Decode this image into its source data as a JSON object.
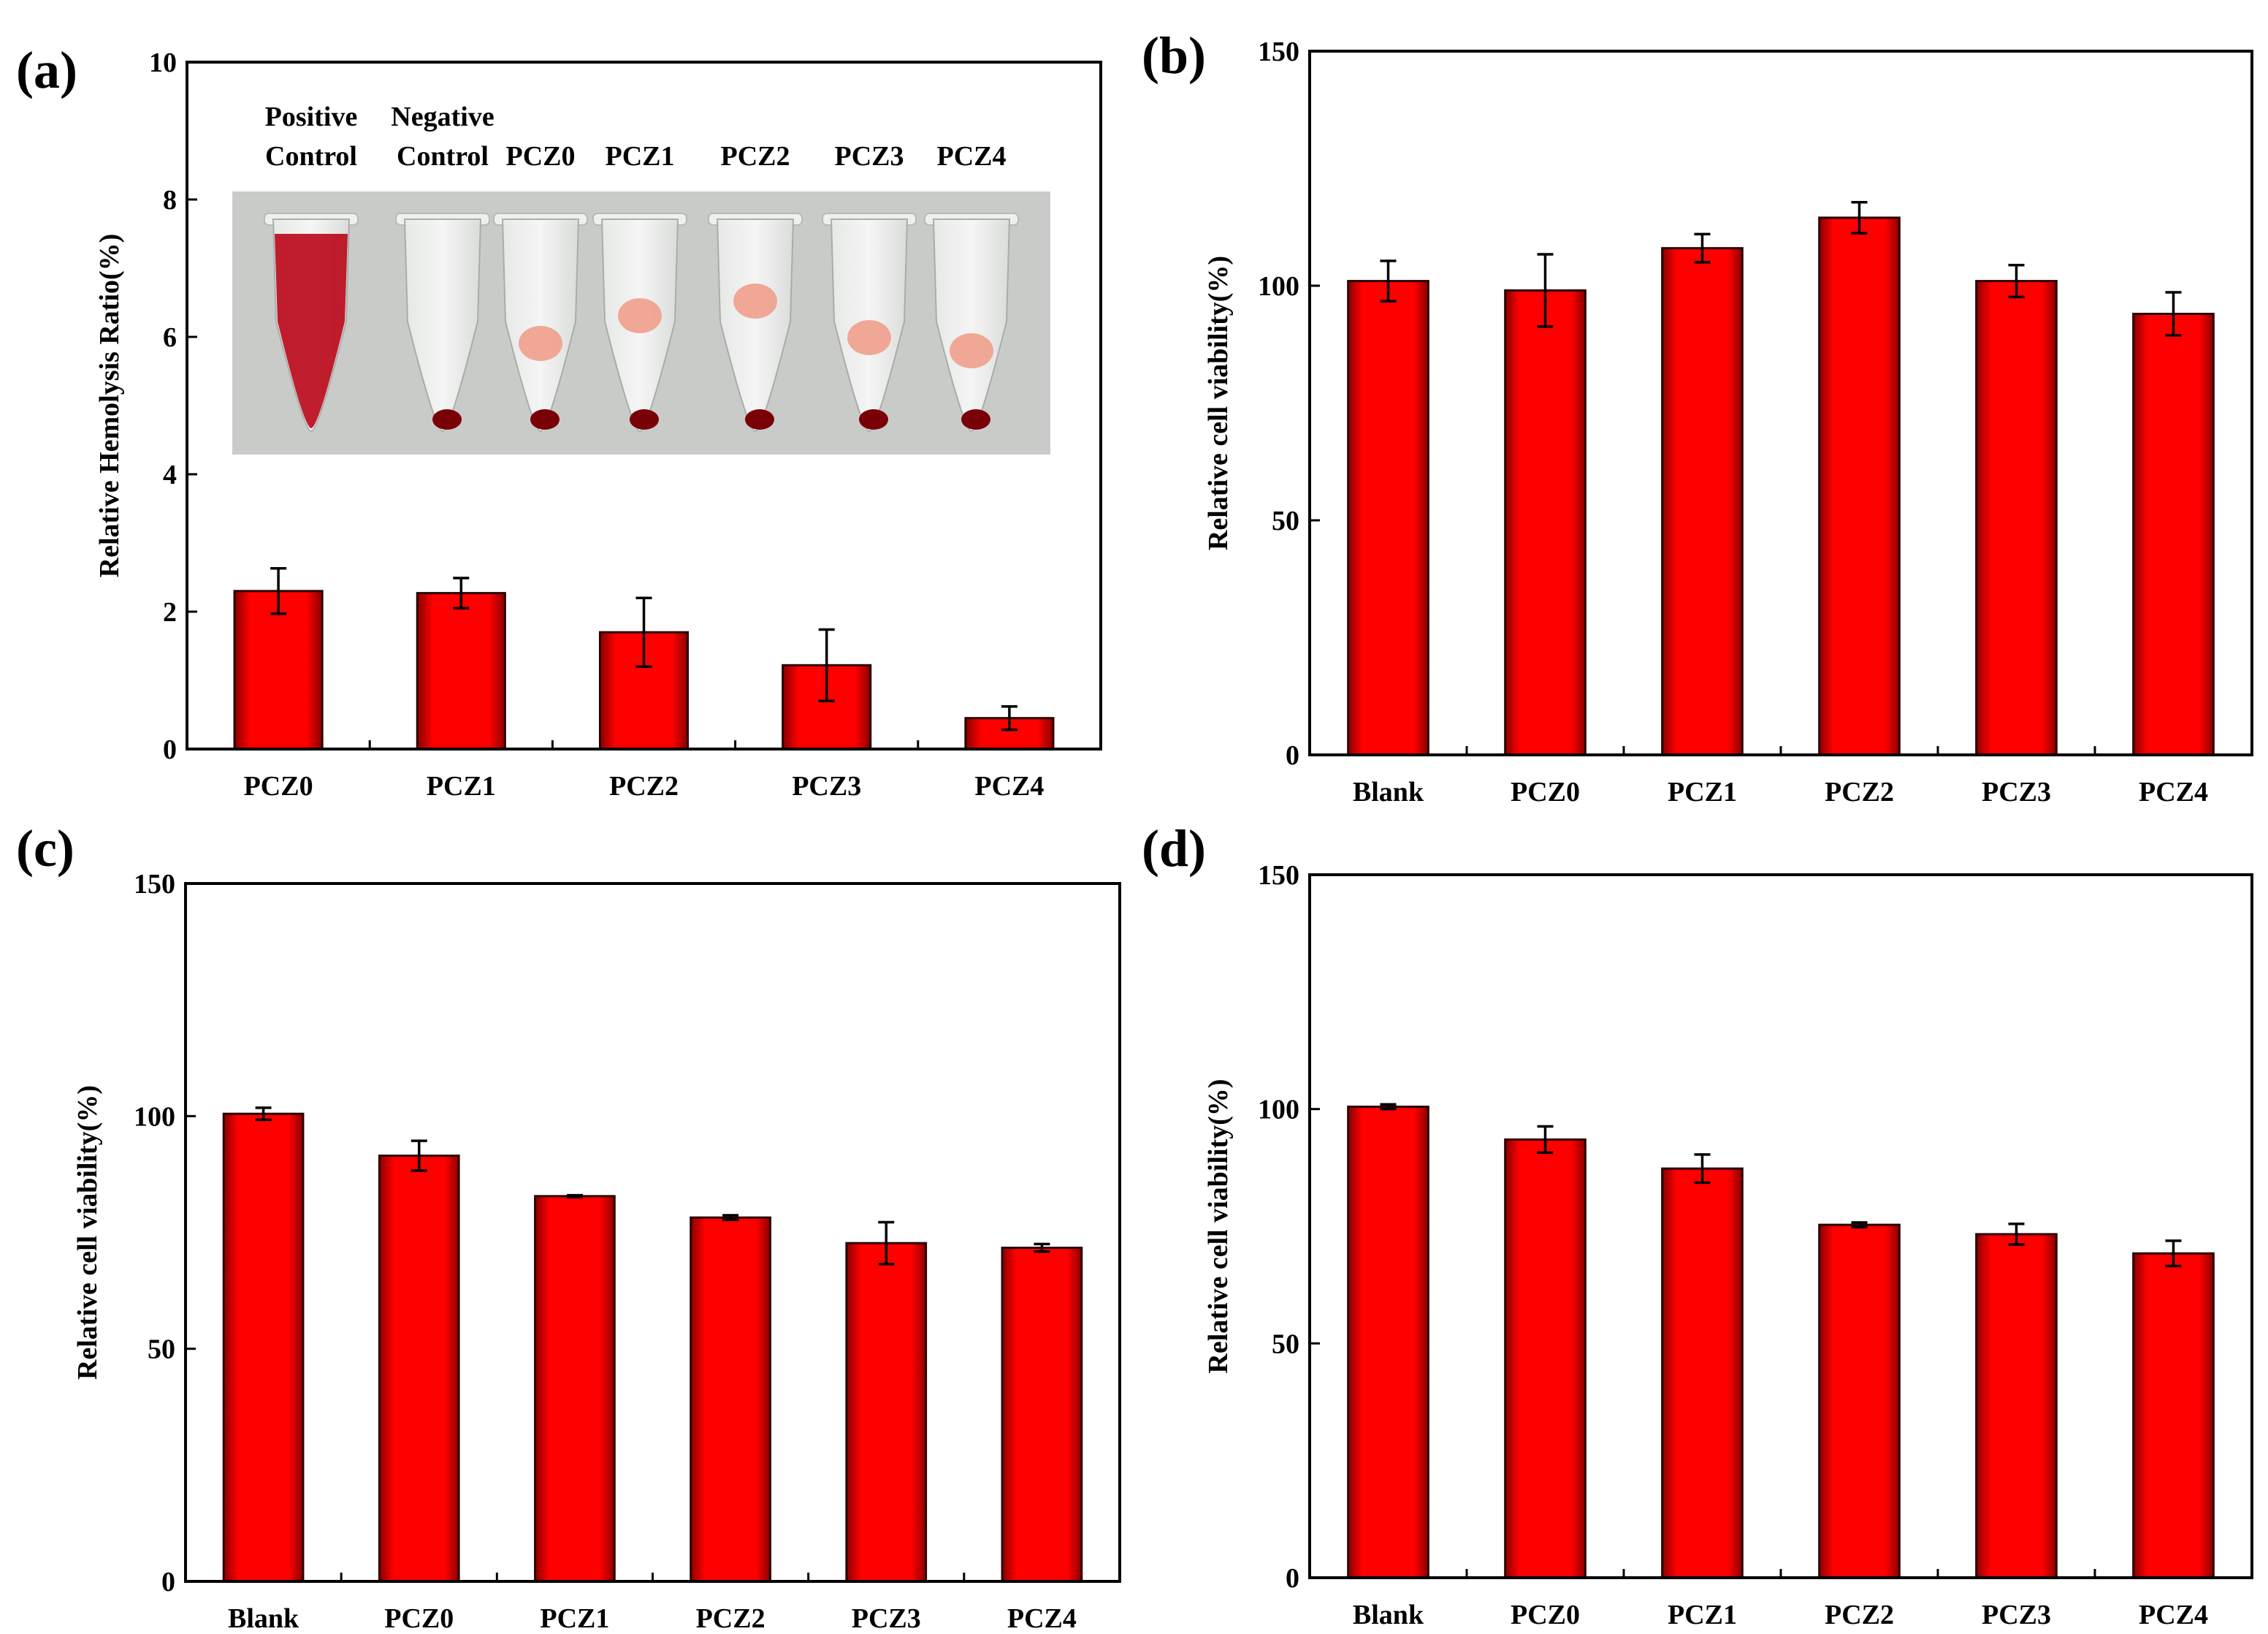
{
  "colors": {
    "bar": "#ff0000",
    "bar_edge": "#2a0000",
    "axis": "#000000",
    "photo_bg": "#c9cbc9",
    "blood": "#b80012",
    "pellet": "#7a0008",
    "clot": "#ef9f8c"
  },
  "inset": {
    "labels": [
      {
        "line1": "Positive",
        "line2": "Control"
      },
      {
        "line1": "Negative",
        "line2": "Control"
      },
      {
        "line1": "",
        "line2": "PCZ0"
      },
      {
        "line1": "",
        "line2": "PCZ1"
      },
      {
        "line1": "",
        "line2": "PCZ2"
      },
      {
        "line1": "",
        "line2": "PCZ3"
      },
      {
        "line1": "",
        "line2": "PCZ4"
      }
    ]
  },
  "chart_data": [
    {
      "panel": "(a)",
      "type": "bar",
      "title": "",
      "xlabel": "",
      "ylabel": "Relative Hemolysis Ratio(%)",
      "ylim": [
        0,
        10
      ],
      "yticks": [
        0,
        2,
        4,
        6,
        8,
        10
      ],
      "categories": [
        "PCZ0",
        "PCZ1",
        "PCZ2",
        "PCZ3",
        "PCZ4"
      ],
      "values": [
        2.3,
        2.27,
        1.7,
        1.22,
        0.45
      ],
      "errors": [
        0.33,
        0.22,
        0.5,
        0.52,
        0.17
      ],
      "grid": false
    },
    {
      "panel": "(b)",
      "type": "bar",
      "title": "",
      "xlabel": "",
      "ylabel": "Relative cell viability(%)",
      "ylim": [
        0,
        150
      ],
      "yticks": [
        0,
        50,
        100,
        150
      ],
      "categories": [
        "Blank",
        "PCZ0",
        "PCZ1",
        "PCZ2",
        "PCZ3",
        "PCZ4"
      ],
      "values": [
        101,
        99,
        108,
        114.5,
        101,
        94
      ],
      "errors": [
        4.3,
        7.7,
        3,
        3.3,
        3.4,
        4.6
      ],
      "grid": false
    },
    {
      "panel": "(c)",
      "type": "bar",
      "title": "",
      "xlabel": "",
      "ylabel": "Relative cell viability(%)",
      "ylim": [
        0,
        150
      ],
      "yticks": [
        0,
        50,
        100,
        150
      ],
      "categories": [
        "Blank",
        "PCZ0",
        "PCZ1",
        "PCZ2",
        "PCZ3",
        "PCZ4"
      ],
      "values": [
        100.5,
        91.5,
        82.8,
        78.2,
        72.7,
        71.7
      ],
      "errors": [
        1.3,
        3.2,
        0.2,
        0.5,
        4.5,
        0.8
      ],
      "grid": false
    },
    {
      "panel": "(d)",
      "type": "bar",
      "title": "",
      "xlabel": "",
      "ylabel": "Relative cell viability(%)",
      "ylim": [
        0,
        150
      ],
      "yticks": [
        0,
        50,
        100,
        150
      ],
      "categories": [
        "Blank",
        "PCZ0",
        "PCZ1",
        "PCZ2",
        "PCZ3",
        "PCZ4"
      ],
      "values": [
        100.5,
        93.5,
        87.3,
        75.3,
        73.3,
        69.2
      ],
      "errors": [
        0.5,
        2.8,
        3,
        0.5,
        2.2,
        2.7
      ],
      "grid": false
    }
  ]
}
